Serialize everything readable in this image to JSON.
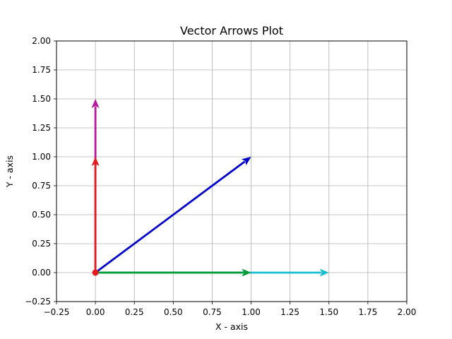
{
  "chart_data": {
    "type": "quiver",
    "title": "Vector Arrows Plot",
    "xlabel": "X - axis",
    "ylabel": "Y - axis",
    "xlim": [
      -0.25,
      2.0
    ],
    "ylim": [
      -0.25,
      2.0
    ],
    "grid": true,
    "x_ticks": [
      "−0.25",
      "0.00",
      "0.25",
      "0.50",
      "0.75",
      "1.00",
      "1.25",
      "1.50",
      "1.75",
      "2.00"
    ],
    "y_ticks": [
      "−0.25",
      "0.00",
      "0.25",
      "0.50",
      "0.75",
      "1.00",
      "1.25",
      "1.50",
      "1.75",
      "2.00"
    ],
    "origin": {
      "x": 0,
      "y": 0,
      "color": "#e41a1c"
    },
    "vectors": [
      {
        "x": 0,
        "y": 0,
        "dx": 1.5,
        "dy": 0,
        "color": "#17becf"
      },
      {
        "x": 0,
        "y": 0,
        "dx": 1.0,
        "dy": 0,
        "color": "#009933"
      },
      {
        "x": 0,
        "y": 0,
        "dx": 1.0,
        "dy": 1.0,
        "color": "#0000cc"
      },
      {
        "x": 0,
        "y": 0,
        "dx": 0,
        "dy": 1.5,
        "color": "#b5179e"
      },
      {
        "x": 0,
        "y": 0,
        "dx": 0,
        "dy": 1.0,
        "color": "#e41a1c"
      }
    ]
  }
}
